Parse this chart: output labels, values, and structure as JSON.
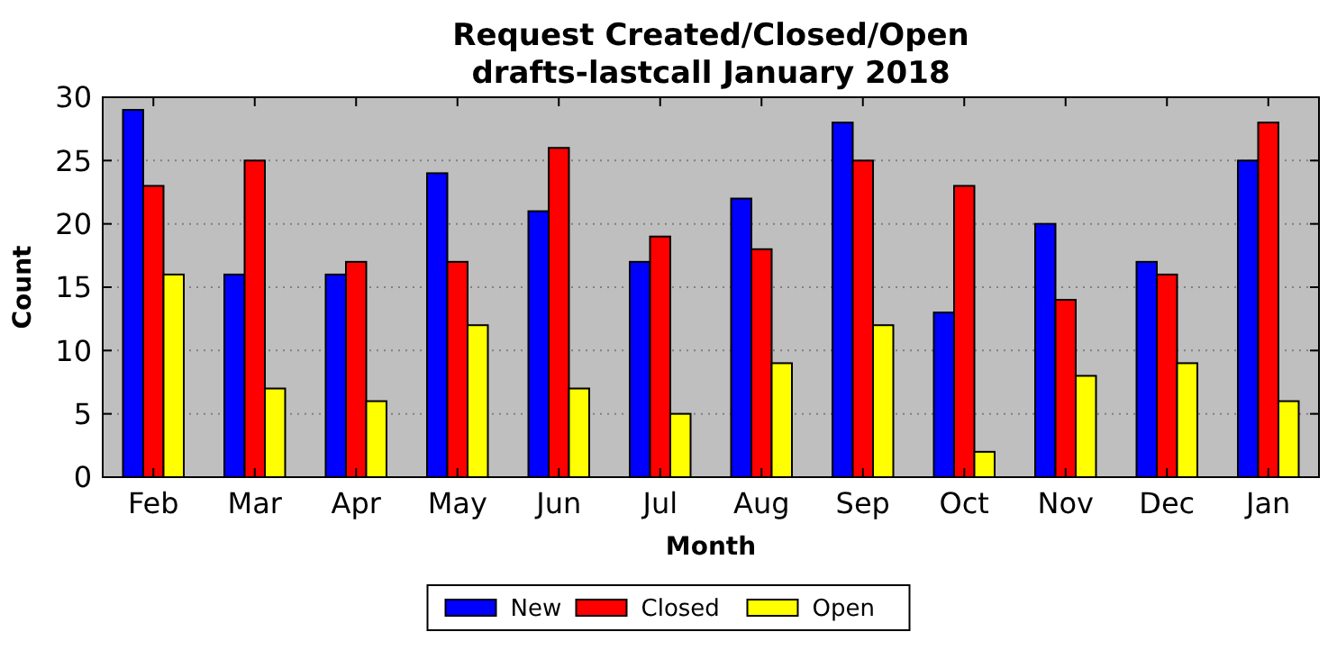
{
  "chart_data": {
    "type": "bar",
    "title": "Request Created/Closed/Open\ndrafts-lastcall January 2018",
    "xlabel": "Month",
    "ylabel": "Count",
    "categories": [
      "Feb",
      "Mar",
      "Apr",
      "May",
      "Jun",
      "Jul",
      "Aug",
      "Sep",
      "Oct",
      "Nov",
      "Dec",
      "Jan"
    ],
    "series": [
      {
        "name": "New",
        "color": "#0000ff",
        "values": [
          29,
          16,
          16,
          24,
          21,
          17,
          22,
          28,
          13,
          20,
          17,
          25
        ]
      },
      {
        "name": "Closed",
        "color": "#ff0000",
        "values": [
          23,
          25,
          17,
          17,
          26,
          19,
          18,
          25,
          23,
          14,
          16,
          28
        ]
      },
      {
        "name": "Open",
        "color": "#ffff00",
        "values": [
          16,
          7,
          6,
          12,
          7,
          5,
          9,
          12,
          2,
          8,
          9,
          6
        ]
      }
    ],
    "ylim": [
      0,
      30
    ],
    "yticks": [
      0,
      5,
      10,
      15,
      20,
      25,
      30
    ],
    "grid": "y",
    "legend": "bottom"
  }
}
